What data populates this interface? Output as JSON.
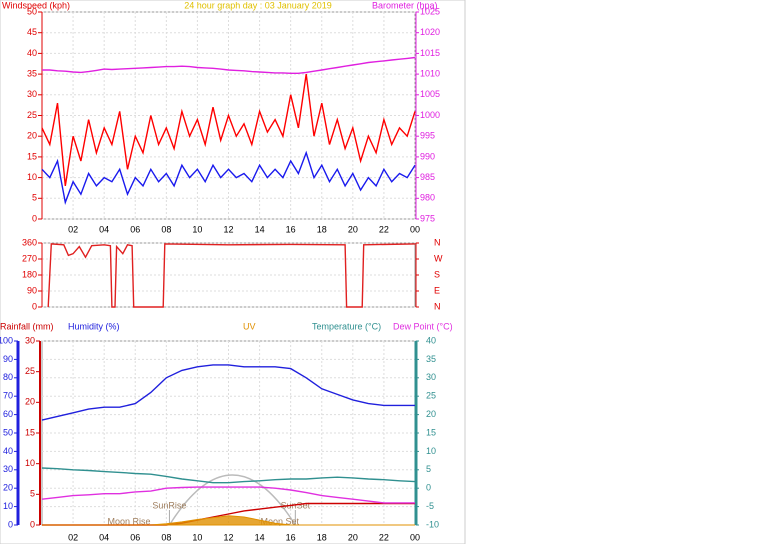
{
  "chart_data": [
    {
      "type": "line",
      "title": "24 hour graph day : 03 January 2019",
      "ylabel": "Windspeed (kph)",
      "y2label": "Barometer (hpa)",
      "x": [
        0,
        0.5,
        1,
        1.5,
        2,
        2.5,
        3,
        3.5,
        4,
        4.5,
        5,
        5.5,
        6,
        6.5,
        7,
        7.5,
        8,
        8.5,
        9,
        9.5,
        10,
        10.5,
        11,
        11.5,
        12,
        12.5,
        13,
        13.5,
        14,
        14.5,
        15,
        15.5,
        16,
        16.5,
        17,
        17.5,
        18,
        18.5,
        19,
        19.5,
        20,
        20.5,
        21,
        21.5,
        22,
        22.5,
        23,
        23.5,
        24
      ],
      "xlim": [
        0,
        24
      ],
      "xticks": [
        {
          "value": 2,
          "label": "02"
        },
        {
          "value": 4,
          "label": "04"
        },
        {
          "value": 6,
          "label": "06"
        },
        {
          "value": 8,
          "label": "08"
        },
        10,
        12,
        14,
        16,
        18,
        20,
        22,
        {
          "value": 24,
          "label": "00"
        }
      ],
      "ylim": [
        0,
        50
      ],
      "yticks": [
        0,
        5,
        10,
        15,
        20,
        25,
        30,
        35,
        40,
        45,
        50
      ],
      "y2lim": [
        975,
        1025
      ],
      "y2ticks": [
        975,
        980,
        985,
        990,
        995,
        1000,
        1005,
        1010,
        1015,
        1020,
        1025
      ],
      "grid": true,
      "series": [
        {
          "color": "#ff0000",
          "values": [
            22,
            18,
            28,
            8,
            20,
            14,
            24,
            16,
            22,
            18,
            26,
            12,
            20,
            16,
            25,
            18,
            22,
            17,
            26,
            20,
            24,
            18,
            27,
            19,
            25,
            20,
            23,
            18,
            26,
            21,
            24,
            20,
            30,
            22,
            35,
            20,
            28,
            18,
            24,
            17,
            22,
            14,
            20,
            16,
            24,
            18,
            22,
            20,
            26
          ]
        },
        {
          "color": "#1a1aee",
          "values": [
            12,
            10,
            14,
            4,
            9,
            6,
            11,
            8,
            10,
            9,
            12,
            6,
            10,
            8,
            12,
            9,
            11,
            8,
            13,
            10,
            12,
            9,
            13,
            10,
            12,
            10,
            11,
            9,
            13,
            10,
            12,
            10,
            14,
            11,
            16,
            10,
            13,
            9,
            12,
            8,
            11,
            7,
            10,
            8,
            12,
            9,
            11,
            10,
            13
          ]
        },
        {
          "color": "#e020e0",
          "axis": "y2",
          "values": [
            1011,
            1011,
            1010.8,
            1010.7,
            1010.5,
            1010.4,
            1010.6,
            1010.9,
            1011.2,
            1011.1,
            1011.2,
            1011.3,
            1011.4,
            1011.5,
            1011.6,
            1011.7,
            1011.8,
            1011.8,
            1011.9,
            1011.8,
            1011.6,
            1011.5,
            1011.4,
            1011.2,
            1011,
            1010.9,
            1010.8,
            1010.6,
            1010.5,
            1010.4,
            1010.3,
            1010.3,
            1010.2,
            1010.2,
            1010.4,
            1010.7,
            1011,
            1011.3,
            1011.6,
            1011.9,
            1012.2,
            1012.5,
            1012.8,
            1013,
            1013.2,
            1013.4,
            1013.6,
            1013.8,
            1014
          ]
        }
      ]
    },
    {
      "type": "line",
      "x": [
        0.4,
        0.6,
        1.4,
        1.7,
        2,
        2.4,
        2.8,
        3.2,
        4,
        4.4,
        4.5,
        4.7,
        4.8,
        5.2,
        5.5,
        5.8,
        5.9,
        7.8,
        7.9,
        12,
        16,
        19.5,
        19.6,
        20.6,
        20.7,
        24
      ],
      "xlim": [
        0,
        24
      ],
      "ylim": [
        0,
        360
      ],
      "yticks": [
        0,
        90,
        180,
        270,
        360
      ],
      "y2ticks": [
        {
          "value": 360,
          "label": "N"
        },
        {
          "value": 270,
          "label": "W"
        },
        {
          "value": 180,
          "label": "S"
        },
        {
          "value": 90,
          "label": "E"
        },
        {
          "value": 0,
          "label": "N"
        }
      ],
      "grid": true,
      "series": [
        {
          "color": "#e02020",
          "values": [
            0,
            355,
            350,
            290,
            300,
            340,
            280,
            345,
            350,
            345,
            0,
            0,
            340,
            300,
            350,
            345,
            0,
            0,
            355,
            350,
            352,
            350,
            0,
            0,
            350,
            355
          ]
        }
      ]
    },
    {
      "type": "line",
      "x": [
        0,
        1,
        2,
        3,
        4,
        5,
        6,
        7,
        8,
        9,
        10,
        11,
        12,
        13,
        14,
        15,
        16,
        17,
        18,
        19,
        20,
        21,
        22,
        23,
        24
      ],
      "xlim": [
        0,
        24
      ],
      "xticks": [
        {
          "value": 2,
          "label": "02"
        },
        {
          "value": 4,
          "label": "04"
        },
        {
          "value": 6,
          "label": "06"
        },
        {
          "value": 8,
          "label": "08"
        },
        10,
        12,
        14,
        16,
        18,
        20,
        22,
        {
          "value": 24,
          "label": "00"
        }
      ],
      "ylim": [
        0,
        100
      ],
      "yticks": [
        0,
        10,
        20,
        30,
        40,
        50,
        60,
        70,
        80,
        90,
        100
      ],
      "y3lim": [
        0,
        30
      ],
      "y3ticks": [
        0,
        5,
        10,
        15,
        20,
        25,
        30
      ],
      "y2lim": [
        -10,
        40
      ],
      "y2ticks": [
        -10,
        -5,
        0,
        5,
        10,
        15,
        20,
        25,
        30,
        35,
        40
      ],
      "grid": true,
      "series": [
        {
          "name": "Rainfall (mm)",
          "color": "#cc0000",
          "axis": "y3",
          "values": [
            0,
            0,
            0,
            0,
            0,
            0,
            0,
            0,
            0,
            0.3,
            0.8,
            1.3,
            1.8,
            2.3,
            2.6,
            2.9,
            3.2,
            3.5,
            3.5,
            3.5,
            3.5,
            3.5,
            3.5,
            3.5,
            3.5
          ]
        },
        {
          "name": "Humidity (%)",
          "color": "#2020dd",
          "values": [
            57,
            59,
            61,
            63,
            64,
            64,
            66,
            72,
            80,
            84,
            86,
            87,
            87,
            86,
            86,
            86,
            85,
            80,
            74,
            71,
            68,
            66,
            65,
            65,
            65
          ]
        },
        {
          "name": "UV",
          "color": "#e09000",
          "axis": "y3",
          "kind": "area",
          "values": [
            0,
            0,
            0,
            0,
            0,
            0,
            0,
            0,
            0.2,
            0.5,
            0.9,
            1.2,
            1.5,
            1.3,
            0.8,
            0.3,
            0,
            0,
            0,
            0,
            0,
            0,
            0,
            0,
            0
          ]
        },
        {
          "name": "Temperature (°C)",
          "color": "#309090",
          "axis": "y2",
          "values": [
            5.5,
            5.3,
            5,
            4.8,
            4.5,
            4.3,
            4,
            3.8,
            3.2,
            2.5,
            2,
            1.5,
            1.5,
            1.8,
            2,
            2.3,
            2.5,
            2.5,
            2.8,
            3,
            2.8,
            2.5,
            2.3,
            2,
            1.8
          ]
        },
        {
          "name": "Dew Point (°C)",
          "color": "#e030e0",
          "axis": "y2",
          "values": [
            -3,
            -2.5,
            -2,
            -1.8,
            -1.5,
            -1.5,
            -1,
            -0.8,
            0,
            0.2,
            0.3,
            0.3,
            0.3,
            0.3,
            0.3,
            0,
            -0.5,
            -1.2,
            -2,
            -2.5,
            -3,
            -3.5,
            -4,
            -4,
            -4
          ]
        }
      ],
      "annotations": [
        {
          "text": "SunRise",
          "x": 8.2
        },
        {
          "text": "SunSet",
          "x": 16.3
        },
        {
          "text": "Moon Rise",
          "x": 5.6
        },
        {
          "text": "Moon Set",
          "x": 15.3
        }
      ]
    }
  ]
}
